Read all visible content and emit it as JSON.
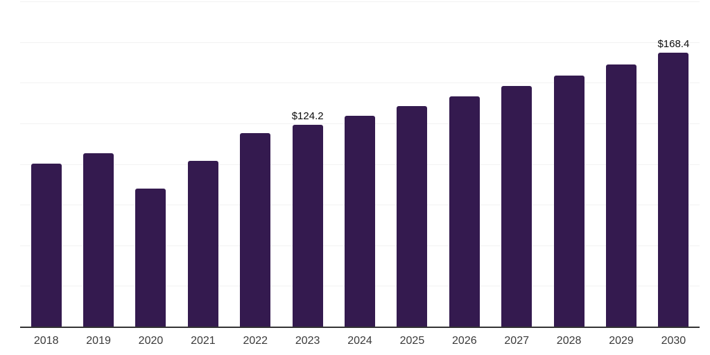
{
  "chart_data": {
    "type": "bar",
    "title": "",
    "xlabel": "",
    "ylabel": "",
    "categories": [
      "2018",
      "2019",
      "2020",
      "2021",
      "2022",
      "2023",
      "2024",
      "2025",
      "2026",
      "2027",
      "2028",
      "2029",
      "2030"
    ],
    "values": [
      100.1,
      106.7,
      85.0,
      102.0,
      119.1,
      124.2,
      129.7,
      135.5,
      141.5,
      147.8,
      154.4,
      161.2,
      168.4
    ],
    "bar_labels": [
      "",
      "",
      "",
      "",
      "",
      "$124.2",
      "",
      "",
      "",
      "",
      "",
      "",
      "$168.4"
    ],
    "ylim": [
      0,
      200
    ],
    "gridline_step": 25,
    "grid": true,
    "legend": false,
    "colors": {
      "bar": "#341a4f",
      "gridline": "#f2f2f2",
      "axis_line": "#333333",
      "tick_label": "#3a3a3a",
      "data_label": "#0d0d0d"
    }
  }
}
